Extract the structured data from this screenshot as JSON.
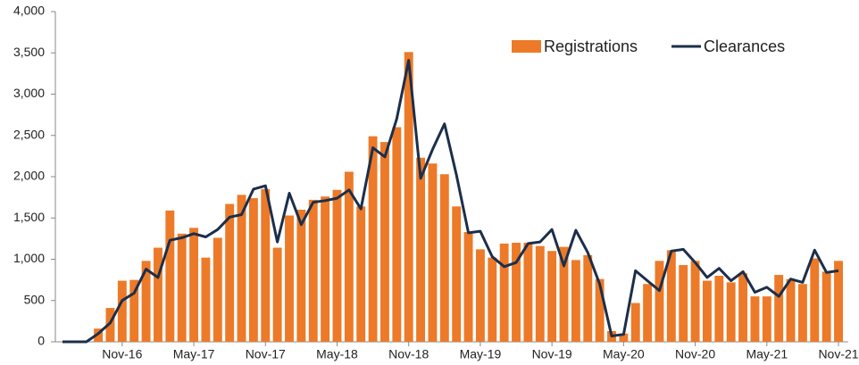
{
  "chart_data": {
    "type": "bar_line",
    "categories": [
      null,
      null,
      null,
      null,
      null,
      "Nov-16",
      null,
      null,
      null,
      null,
      null,
      "May-17",
      null,
      null,
      null,
      null,
      null,
      "Nov-17",
      null,
      null,
      null,
      null,
      null,
      "May-18",
      null,
      null,
      null,
      null,
      null,
      "Nov-18",
      null,
      null,
      null,
      null,
      null,
      "May-19",
      null,
      null,
      null,
      null,
      null,
      "Nov-19",
      null,
      null,
      null,
      null,
      null,
      "May-20",
      null,
      null,
      null,
      null,
      null,
      "Nov-20",
      null,
      null,
      null,
      null,
      null,
      "May-21",
      null,
      null,
      null,
      null,
      null,
      "Nov-21"
    ],
    "series": [
      {
        "name": "Registrations",
        "type": "bar",
        "color": "#ec7a28",
        "values": [
          0,
          0,
          0,
          160,
          410,
          740,
          750,
          980,
          1140,
          1590,
          1310,
          1380,
          1020,
          1260,
          1670,
          1780,
          1740,
          1850,
          1140,
          1530,
          1600,
          1720,
          1760,
          1840,
          2060,
          1640,
          2490,
          2420,
          2600,
          3510,
          2230,
          2160,
          2030,
          1640,
          1330,
          1120,
          1020,
          1190,
          1200,
          1200,
          1160,
          1100,
          1150,
          990,
          1050,
          760,
          130,
          100,
          470,
          700,
          980,
          1110,
          930,
          980,
          740,
          800,
          720,
          830,
          550,
          550,
          810,
          760,
          700,
          1010,
          850,
          980
        ]
      },
      {
        "name": "Clearances",
        "type": "line",
        "color": "#1c2e4a",
        "values": [
          0,
          0,
          0,
          100,
          230,
          500,
          590,
          880,
          780,
          1230,
          1260,
          1310,
          1270,
          1360,
          1510,
          1540,
          1850,
          1890,
          1210,
          1800,
          1420,
          1690,
          1710,
          1740,
          1840,
          1610,
          2350,
          2240,
          2700,
          3410,
          1980,
          2330,
          2640,
          2020,
          1320,
          1340,
          1030,
          910,
          960,
          1190,
          1210,
          1360,
          920,
          1350,
          1080,
          700,
          70,
          90,
          860,
          740,
          620,
          1100,
          1120,
          960,
          780,
          890,
          740,
          850,
          600,
          660,
          550,
          760,
          720,
          1110,
          840,
          860
        ]
      }
    ],
    "ylim": [
      0,
      4000
    ],
    "yticks": [
      0,
      500,
      {
        "value": 1000,
        "label": "1,000"
      },
      {
        "value": 1500,
        "label": "1,500"
      },
      {
        "value": 2000,
        "label": "2,000"
      },
      {
        "value": 2500,
        "label": "2,500"
      },
      {
        "value": 3000,
        "label": "3,000"
      },
      {
        "value": 3500,
        "label": "3,500"
      },
      {
        "value": 4000,
        "label": "4,000"
      }
    ],
    "legend": "top-right"
  }
}
